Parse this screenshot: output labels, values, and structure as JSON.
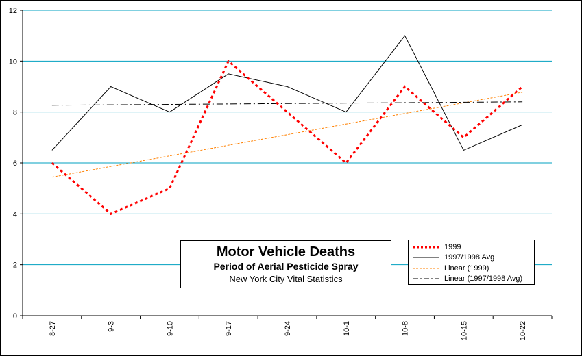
{
  "chart_data": {
    "type": "line",
    "categories": [
      "8-27",
      "9-3",
      "9-10",
      "9-17",
      "9-24",
      "10-1",
      "10-8",
      "10-15",
      "10-22"
    ],
    "series": [
      {
        "name": "1999",
        "values": [
          6,
          4,
          5,
          10,
          8,
          6,
          9,
          7,
          9
        ],
        "color": "#ff0000",
        "style": "dotted-thick"
      },
      {
        "name": "1997/1998 Avg",
        "values": [
          6.5,
          9,
          8,
          9.5,
          9,
          8,
          11,
          6.5,
          7.5
        ],
        "color": "#000000",
        "style": "solid"
      }
    ],
    "trendlines": [
      {
        "name": "Linear (1999)",
        "of_series": "1999",
        "type": "linear",
        "color": "#ff8000",
        "style": "dashed"
      },
      {
        "name": "Linear (1997/1998 Avg)",
        "of_series": "1997/1998 Avg",
        "type": "linear",
        "color": "#000000",
        "style": "dash-dot"
      }
    ],
    "ylim": [
      0,
      12
    ],
    "yticks": [
      0,
      2,
      4,
      6,
      8,
      10,
      12
    ],
    "grid": true,
    "gridline_color": "#00a0c0",
    "legend_position": "bottom-right",
    "title_box": {
      "title": "Motor Vehicle Deaths",
      "subtitle": "Period of Aerial Pesticide Spray",
      "source": "New York City Vital Statistics"
    }
  }
}
